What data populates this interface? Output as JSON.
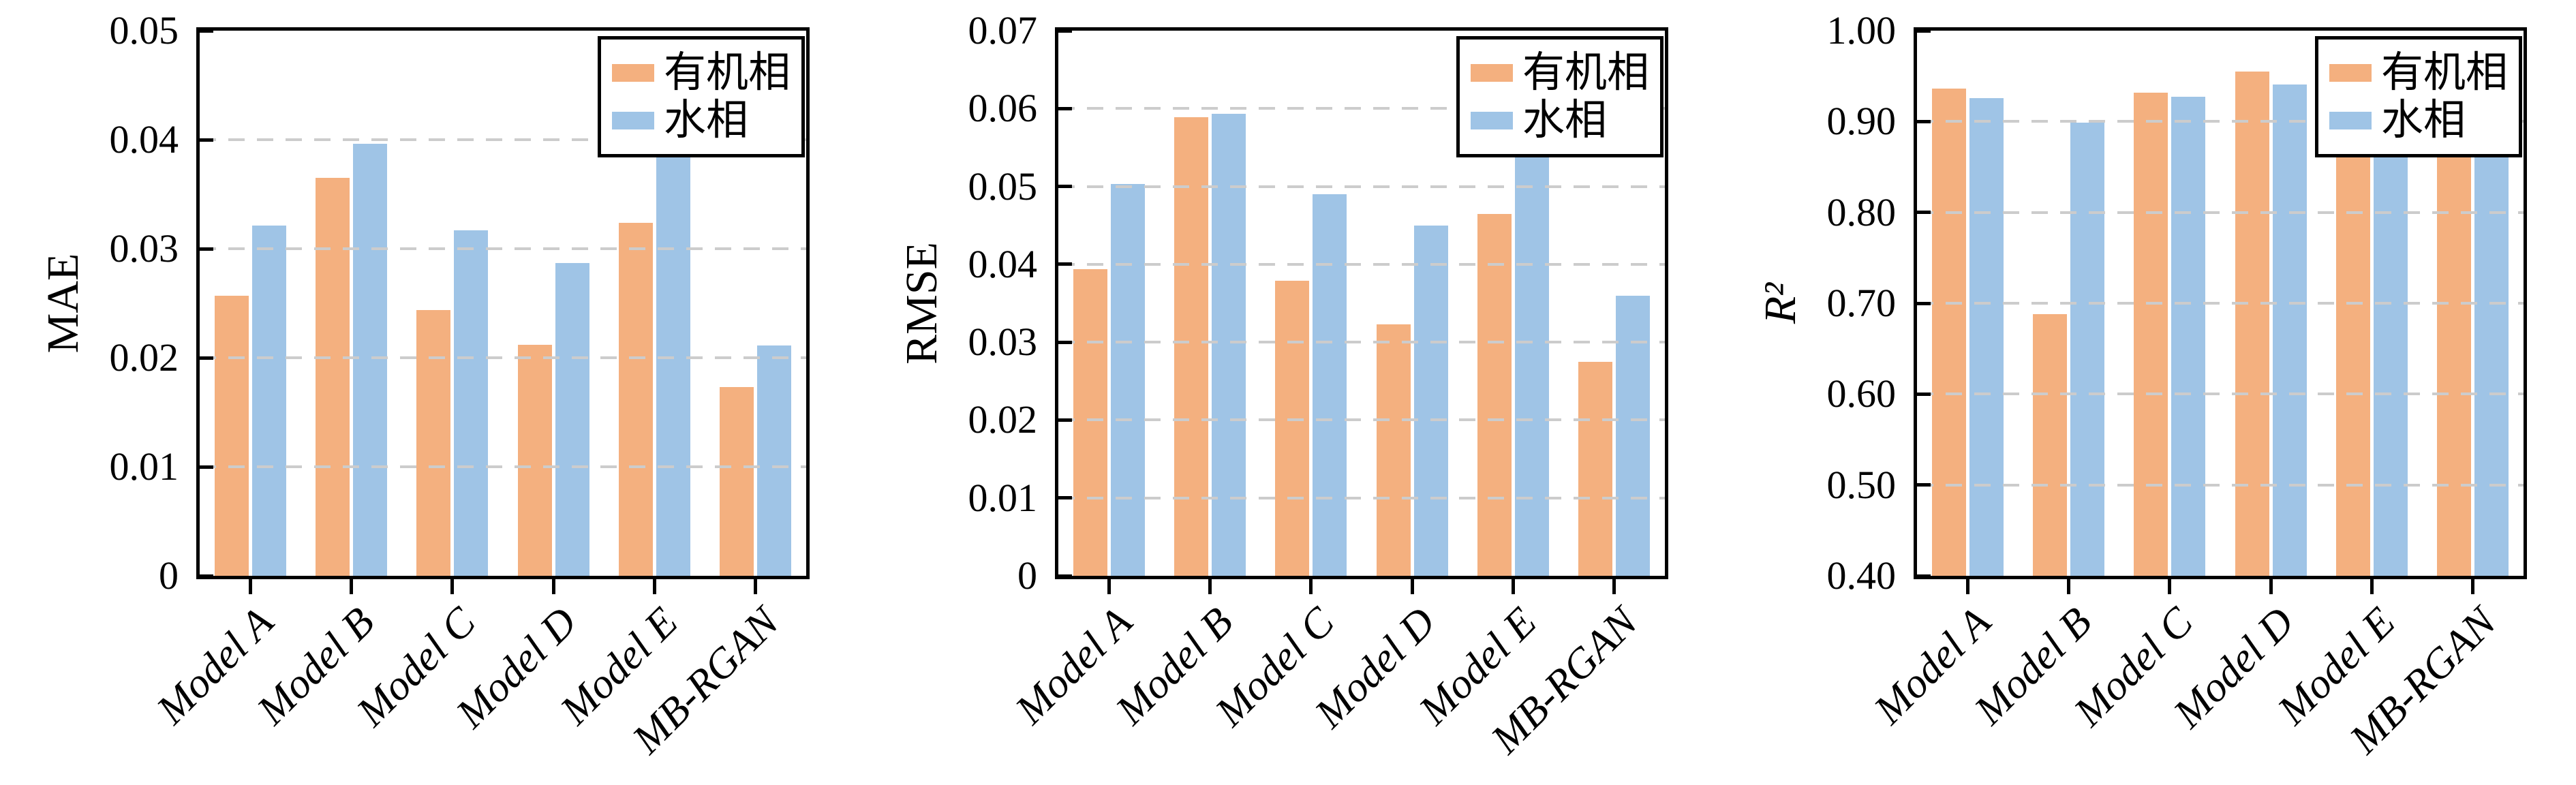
{
  "figure": {
    "background": "#ffffff",
    "axis_color": "#000000",
    "grid_color": "#cccccc",
    "series_colors": {
      "有机相": "#F4B07F",
      "水相": "#9FC4E6"
    }
  },
  "legend": {
    "position": "upper right",
    "items": [
      {
        "label": "有机相",
        "color": "#F4B07F"
      },
      {
        "label": "水相",
        "color": "#9FC4E6"
      }
    ]
  },
  "categories": [
    "Model A",
    "Model B",
    "Model C",
    "Model D",
    "Model E",
    "MB-RGAN"
  ],
  "chart_data": [
    {
      "id": "mae",
      "type": "bar",
      "ylabel": "MAE",
      "ylabel_italic": false,
      "ymin": 0,
      "ymax": 0.05,
      "grid": "dashed horizontal",
      "legend_position": "upper right",
      "yticks": [
        {
          "value": 0.05,
          "label": "0.05"
        },
        {
          "value": 0.04,
          "label": "0.04"
        },
        {
          "value": 0.03,
          "label": "0.03"
        },
        {
          "value": 0.02,
          "label": "0.02"
        },
        {
          "value": 0.01,
          "label": "0.01"
        },
        {
          "value": 0,
          "label": "0"
        }
      ],
      "categories": [
        "Model A",
        "Model B",
        "Model C",
        "Model D",
        "Model E",
        "MB-RGAN"
      ],
      "series": [
        {
          "name": "有机相",
          "values": [
            0.0257,
            0.0365,
            0.0244,
            0.0212,
            0.0324,
            0.0173
          ]
        },
        {
          "name": "水相",
          "values": [
            0.0321,
            0.0396,
            0.0317,
            0.0287,
            0.0415,
            0.0211
          ]
        }
      ]
    },
    {
      "id": "rmse",
      "type": "bar",
      "ylabel": "RMSE",
      "ylabel_italic": false,
      "ymin": 0,
      "ymax": 0.07,
      "grid": "dashed horizontal",
      "legend_position": "upper right",
      "yticks": [
        {
          "value": 0.07,
          "label": "0.07"
        },
        {
          "value": 0.06,
          "label": "0.06"
        },
        {
          "value": 0.05,
          "label": "0.05"
        },
        {
          "value": 0.04,
          "label": "0.04"
        },
        {
          "value": 0.03,
          "label": "0.03"
        },
        {
          "value": 0.02,
          "label": "0.02"
        },
        {
          "value": 0.01,
          "label": "0.01"
        },
        {
          "value": 0,
          "label": "0"
        }
      ],
      "categories": [
        "Model A",
        "Model B",
        "Model C",
        "Model D",
        "Model E",
        "MB-RGAN"
      ],
      "series": [
        {
          "name": "有机相",
          "values": [
            0.0394,
            0.0589,
            0.0379,
            0.0323,
            0.0465,
            0.0275
          ]
        },
        {
          "name": "水相",
          "values": [
            0.0503,
            0.0593,
            0.049,
            0.045,
            0.0575,
            0.036
          ]
        }
      ]
    },
    {
      "id": "r2",
      "type": "bar",
      "ylabel": "R²",
      "ylabel_italic": true,
      "ymin": 0.4,
      "ymax": 1.0,
      "grid": "dashed horizontal",
      "legend_position": "upper right",
      "yticks": [
        {
          "value": 1.0,
          "label": "1.00"
        },
        {
          "value": 0.9,
          "label": "0.90"
        },
        {
          "value": 0.8,
          "label": "0.80"
        },
        {
          "value": 0.7,
          "label": "0.70"
        },
        {
          "value": 0.6,
          "label": "0.60"
        },
        {
          "value": 0.5,
          "label": "0.50"
        },
        {
          "value": 0.4,
          "label": "0.40"
        }
      ],
      "categories": [
        "Model A",
        "Model B",
        "Model C",
        "Model D",
        "Model E",
        "MB-RGAN"
      ],
      "series": [
        {
          "name": "有机相",
          "values": [
            0.936,
            0.688,
            0.932,
            0.955,
            0.91,
            0.965
          ]
        },
        {
          "name": "水相",
          "values": [
            0.926,
            0.899,
            0.927,
            0.941,
            0.9,
            0.955
          ]
        }
      ]
    }
  ]
}
